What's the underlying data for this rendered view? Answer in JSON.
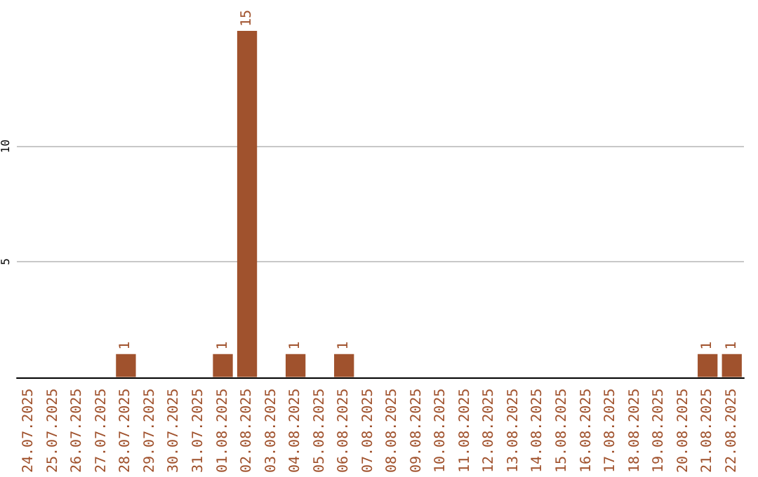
{
  "chart_data": {
    "type": "bar",
    "categories": [
      "24.07.2025",
      "25.07.2025",
      "26.07.2025",
      "27.07.2025",
      "28.07.2025",
      "29.07.2025",
      "30.07.2025",
      "31.07.2025",
      "01.08.2025",
      "02.08.2025",
      "03.08.2025",
      "04.08.2025",
      "05.08.2025",
      "06.08.2025",
      "07.08.2025",
      "08.08.2025",
      "09.08.2025",
      "10.08.2025",
      "11.08.2025",
      "12.08.2025",
      "13.08.2025",
      "14.08.2025",
      "15.08.2025",
      "16.08.2025",
      "17.08.2025",
      "18.08.2025",
      "19.08.2025",
      "20.08.2025",
      "21.08.2025",
      "22.08.2025"
    ],
    "values": [
      0,
      0,
      0,
      0,
      1,
      0,
      0,
      0,
      1,
      15,
      0,
      1,
      0,
      1,
      0,
      0,
      0,
      0,
      0,
      0,
      0,
      0,
      0,
      0,
      0,
      0,
      0,
      0,
      1,
      1
    ],
    "value_labels": [
      null,
      null,
      null,
      null,
      "1",
      null,
      null,
      null,
      "1",
      "15",
      null,
      "1",
      null,
      "1",
      null,
      null,
      null,
      null,
      null,
      null,
      null,
      null,
      null,
      null,
      null,
      null,
      null,
      null,
      "1",
      "1"
    ],
    "color": "#a0522d",
    "ylim": [
      0,
      15
    ],
    "yticks": [
      5,
      10
    ],
    "grid": "y"
  }
}
